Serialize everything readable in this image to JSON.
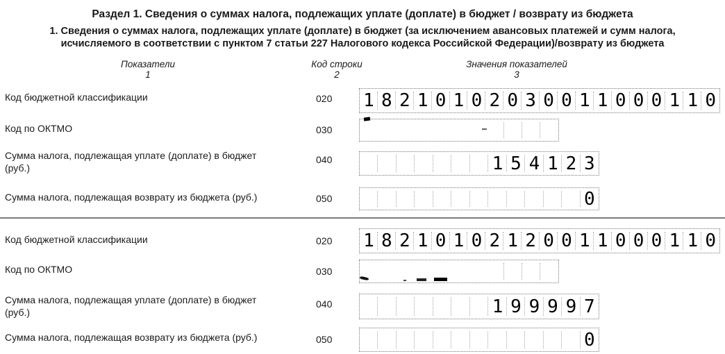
{
  "page": {
    "title": "Раздел 1. Сведения о суммах налога, подлежащих уплате (доплате) в бюджет / возврату из бюджета",
    "subtitle_line1": "1. Сведения о суммах налога, подлежащих уплате (доплате) в бюджет (за исключением авансовых платежей и сумм налога,",
    "subtitle_line2": "исчисляемого в соответствии с пунктом 7 статьи 227 Налогового кодекса Российской Федерации)/возврату из бюджета"
  },
  "columns": [
    {
      "label": "Показатели",
      "number": "1"
    },
    {
      "label": "Код строки",
      "number": "2"
    },
    {
      "label": "Значения показателей",
      "number": "3"
    }
  ],
  "blocks": [
    {
      "rows": [
        {
          "label": "Код бюджетной классификации",
          "label2": "",
          "code": "020",
          "value": "18210102030011000110",
          "cells": 20,
          "align": "left"
        },
        {
          "label": "Код по ОКТМО",
          "label2": "",
          "code": "030",
          "value": "",
          "cells": 11,
          "align": "left"
        },
        {
          "label": "Сумма налога, подлежащая уплате (доплате) в бюджет",
          "label2": "(руб.)",
          "code": "040",
          "value": "154123",
          "cells": 13,
          "align": "right"
        },
        {
          "label": "Сумма налога, подлежащая возврату из бюджета (руб.)",
          "label2": "",
          "code": "050",
          "value": "0",
          "cells": 13,
          "align": "right"
        }
      ]
    },
    {
      "rows": [
        {
          "label": "Код бюджетной классификации",
          "label2": "",
          "code": "020",
          "value": "18210102120011000110",
          "cells": 20,
          "align": "left"
        },
        {
          "label": "Код по ОКТМО",
          "label2": "",
          "code": "030",
          "value": "",
          "cells": 11,
          "align": "left"
        },
        {
          "label": "Сумма налога, подлежащая уплате (доплате) в бюджет",
          "label2": "(руб.)",
          "code": "040",
          "value": "199997",
          "cells": 13,
          "align": "right"
        },
        {
          "label": "Сумма налога, подлежащая возврату из бюджета (руб.)",
          "label2": "",
          "code": "050",
          "value": "0",
          "cells": 13,
          "align": "right"
        }
      ]
    }
  ],
  "colors": {
    "text": "#1a1a1a",
    "digit": "#000000",
    "field_border": "#777777",
    "divider": "#7b7b7b"
  }
}
